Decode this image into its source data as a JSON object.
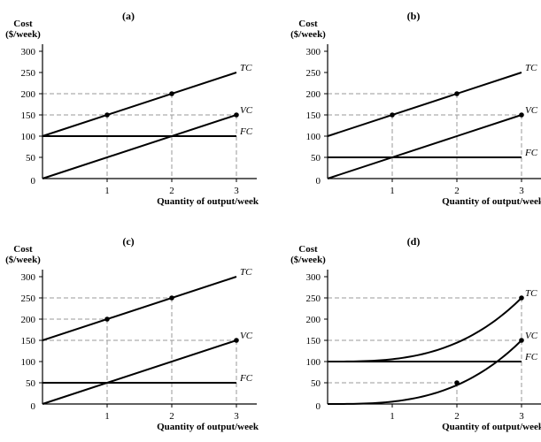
{
  "chart_data": [
    {
      "type": "line",
      "title": "(a)",
      "ylabel": [
        "Cost",
        "($/week)"
      ],
      "xlabel": "Quantity of output/week",
      "xlim": [
        0,
        3.2
      ],
      "ylim": [
        0,
        300
      ],
      "x_ticks": [
        0,
        1,
        2,
        3
      ],
      "y_ticks": [
        50,
        100,
        150,
        200,
        250,
        300
      ],
      "origin_label": "0",
      "series": [
        {
          "name": "TC",
          "style": "linear",
          "x": [
            0,
            3
          ],
          "y": [
            100,
            250
          ],
          "markers": [
            [
              1,
              150
            ],
            [
              2,
              200
            ]
          ]
        },
        {
          "name": "VC",
          "style": "linear",
          "x": [
            0,
            3
          ],
          "y": [
            0,
            150
          ],
          "markers": [
            [
              3,
              150
            ]
          ]
        },
        {
          "name": "FC",
          "style": "linear",
          "x": [
            0,
            3
          ],
          "y": [
            100,
            100
          ],
          "markers": []
        }
      ],
      "guides": [
        [
          1,
          150
        ],
        [
          2,
          200
        ],
        [
          3,
          150
        ]
      ]
    },
    {
      "type": "line",
      "title": "(b)",
      "ylabel": [
        "Cost",
        "($/week)"
      ],
      "xlabel": "Quantity of output/week",
      "xlim": [
        0,
        3.2
      ],
      "ylim": [
        0,
        300
      ],
      "x_ticks": [
        0,
        1,
        2,
        3
      ],
      "y_ticks": [
        50,
        100,
        150,
        200,
        250,
        300
      ],
      "origin_label": "0",
      "series": [
        {
          "name": "TC",
          "style": "linear",
          "x": [
            0,
            3
          ],
          "y": [
            100,
            250
          ],
          "markers": [
            [
              1,
              150
            ],
            [
              2,
              200
            ]
          ]
        },
        {
          "name": "VC",
          "style": "linear",
          "x": [
            0,
            3
          ],
          "y": [
            0,
            150
          ],
          "markers": [
            [
              3,
              150
            ]
          ]
        },
        {
          "name": "FC",
          "style": "linear",
          "x": [
            0,
            3
          ],
          "y": [
            50,
            50
          ],
          "markers": []
        }
      ],
      "guides": [
        [
          1,
          150
        ],
        [
          2,
          200
        ],
        [
          3,
          150
        ]
      ]
    },
    {
      "type": "line",
      "title": "(c)",
      "ylabel": [
        "Cost",
        "($/week)"
      ],
      "xlabel": "Quantity of output/week",
      "xlim": [
        0,
        3.2
      ],
      "ylim": [
        0,
        300
      ],
      "x_ticks": [
        0,
        1,
        2,
        3
      ],
      "y_ticks": [
        50,
        100,
        150,
        200,
        250,
        300
      ],
      "origin_label": "0",
      "series": [
        {
          "name": "TC",
          "style": "linear",
          "x": [
            0,
            3
          ],
          "y": [
            150,
            300
          ],
          "markers": [
            [
              1,
              200
            ],
            [
              2,
              250
            ]
          ]
        },
        {
          "name": "VC",
          "style": "linear",
          "x": [
            0,
            3
          ],
          "y": [
            0,
            150
          ],
          "markers": [
            [
              3,
              150
            ]
          ]
        },
        {
          "name": "FC",
          "style": "linear",
          "x": [
            0,
            3
          ],
          "y": [
            50,
            50
          ],
          "markers": []
        }
      ],
      "guides": [
        [
          1,
          200
        ],
        [
          2,
          250
        ],
        [
          3,
          150
        ]
      ]
    },
    {
      "type": "line",
      "title": "(d)",
      "ylabel": [
        "Cost",
        "($/week)"
      ],
      "xlabel": "Quantity of output/week",
      "xlim": [
        0,
        3.2
      ],
      "ylim": [
        0,
        300
      ],
      "x_ticks": [
        0,
        1,
        2,
        3
      ],
      "y_ticks": [
        50,
        100,
        150,
        200,
        250,
        300
      ],
      "origin_label": "0",
      "series": [
        {
          "name": "TC",
          "style": "cubic",
          "x": [
            0,
            3
          ],
          "y": [
            100,
            250
          ],
          "markers": [
            [
              3,
              250
            ]
          ]
        },
        {
          "name": "VC",
          "style": "cubic",
          "x": [
            0,
            3
          ],
          "y": [
            0,
            150
          ],
          "markers": [
            [
              2,
              50
            ],
            [
              3,
              150
            ]
          ]
        },
        {
          "name": "FC",
          "style": "linear",
          "x": [
            0,
            3
          ],
          "y": [
            100,
            100
          ],
          "markers": []
        }
      ],
      "guides": [
        [
          2,
          50
        ],
        [
          3,
          250
        ],
        [
          3,
          150
        ]
      ]
    }
  ]
}
